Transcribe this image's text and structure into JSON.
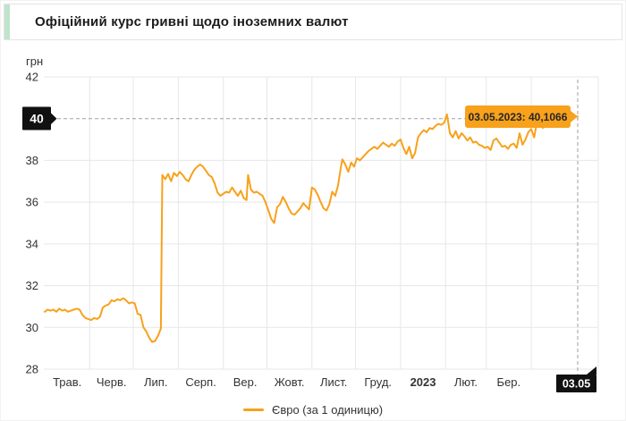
{
  "header": {
    "title": "Офіційний курс гривні щодо іноземних валют"
  },
  "axis_unit_label": "грн",
  "callouts": {
    "y_value": "40",
    "x_value": "03.05",
    "tooltip": "03.05.2023: 40,1066"
  },
  "legend": {
    "label": "Євро (за 1 одиницю)"
  },
  "colors": {
    "series_orange": "#F8A11B",
    "callout_black": "#111111",
    "callout_text": "#ffffff",
    "tooltip_text": "#262626",
    "accent_green": "#BFE3CC",
    "grid": "#E7E7E7",
    "dash": "#9F9F9F",
    "tick_text": "#333333"
  },
  "chart_data": {
    "type": "line",
    "title": "Офіційний курс гривні щодо іноземних валют",
    "xlabel": "",
    "ylabel": "грн",
    "ylim": [
      28,
      42
    ],
    "yticks": [
      42,
      40,
      38,
      36,
      34,
      32,
      30,
      28
    ],
    "highlighted_ytick": 40,
    "xtick_labels": [
      "Трав.",
      "Черв.",
      "Лип.",
      "Серп.",
      "Вер.",
      "Жовт.",
      "Лист.",
      "Груд.",
      "2023",
      "Лют.",
      "Бер."
    ],
    "highlighted_xtick_label": "03.05",
    "x_range": [
      "2022-05-01",
      "2023-05-03"
    ],
    "grid": true,
    "legend_position": "bottom",
    "annotation": {
      "date": "2023-05-03",
      "value": 40.1066,
      "label": "03.05.2023: 40,1066"
    },
    "series": [
      {
        "name": "Євро (за 1 одиницю)",
        "color": "#F8A11B",
        "points": [
          [
            "2022-05-01",
            30.75
          ],
          [
            "2022-05-03",
            30.85
          ],
          [
            "2022-05-05",
            30.8
          ],
          [
            "2022-05-07",
            30.85
          ],
          [
            "2022-05-09",
            30.75
          ],
          [
            "2022-05-11",
            30.9
          ],
          [
            "2022-05-13",
            30.8
          ],
          [
            "2022-05-15",
            30.85
          ],
          [
            "2022-05-17",
            30.75
          ],
          [
            "2022-05-19",
            30.8
          ],
          [
            "2022-05-21",
            30.85
          ],
          [
            "2022-05-23",
            30.9
          ],
          [
            "2022-05-25",
            30.85
          ],
          [
            "2022-05-27",
            30.6
          ],
          [
            "2022-05-29",
            30.45
          ],
          [
            "2022-05-31",
            30.4
          ],
          [
            "2022-06-02",
            30.35
          ],
          [
            "2022-06-04",
            30.45
          ],
          [
            "2022-06-06",
            30.4
          ],
          [
            "2022-06-08",
            30.5
          ],
          [
            "2022-06-10",
            30.95
          ],
          [
            "2022-06-12",
            31.05
          ],
          [
            "2022-06-14",
            31.1
          ],
          [
            "2022-06-16",
            31.3
          ],
          [
            "2022-06-18",
            31.25
          ],
          [
            "2022-06-20",
            31.35
          ],
          [
            "2022-06-22",
            31.3
          ],
          [
            "2022-06-24",
            31.4
          ],
          [
            "2022-06-26",
            31.3
          ],
          [
            "2022-06-28",
            31.15
          ],
          [
            "2022-06-30",
            31.2
          ],
          [
            "2022-07-02",
            31.15
          ],
          [
            "2022-07-04",
            30.65
          ],
          [
            "2022-07-06",
            30.6
          ],
          [
            "2022-07-08",
            30.0
          ],
          [
            "2022-07-10",
            29.8
          ],
          [
            "2022-07-12",
            29.5
          ],
          [
            "2022-07-14",
            29.3
          ],
          [
            "2022-07-16",
            29.35
          ],
          [
            "2022-07-18",
            29.6
          ],
          [
            "2022-07-20",
            29.95
          ],
          [
            "2022-07-21",
            37.3
          ],
          [
            "2022-07-23",
            37.1
          ],
          [
            "2022-07-25",
            37.35
          ],
          [
            "2022-07-27",
            37.0
          ],
          [
            "2022-07-29",
            37.4
          ],
          [
            "2022-07-31",
            37.25
          ],
          [
            "2022-08-02",
            37.45
          ],
          [
            "2022-08-04",
            37.3
          ],
          [
            "2022-08-06",
            37.1
          ],
          [
            "2022-08-08",
            37.0
          ],
          [
            "2022-08-10",
            37.3
          ],
          [
            "2022-08-12",
            37.55
          ],
          [
            "2022-08-14",
            37.7
          ],
          [
            "2022-08-16",
            37.8
          ],
          [
            "2022-08-18",
            37.7
          ],
          [
            "2022-08-20",
            37.5
          ],
          [
            "2022-08-22",
            37.3
          ],
          [
            "2022-08-24",
            37.2
          ],
          [
            "2022-08-26",
            36.9
          ],
          [
            "2022-08-28",
            36.45
          ],
          [
            "2022-08-30",
            36.3
          ],
          [
            "2022-09-01",
            36.4
          ],
          [
            "2022-09-03",
            36.5
          ],
          [
            "2022-09-05",
            36.45
          ],
          [
            "2022-09-07",
            36.7
          ],
          [
            "2022-09-09",
            36.5
          ],
          [
            "2022-09-11",
            36.3
          ],
          [
            "2022-09-13",
            36.55
          ],
          [
            "2022-09-15",
            36.2
          ],
          [
            "2022-09-17",
            36.1
          ],
          [
            "2022-09-18",
            37.3
          ],
          [
            "2022-09-20",
            36.6
          ],
          [
            "2022-09-22",
            36.45
          ],
          [
            "2022-09-24",
            36.5
          ],
          [
            "2022-09-26",
            36.4
          ],
          [
            "2022-09-28",
            36.3
          ],
          [
            "2022-09-30",
            36.0
          ],
          [
            "2022-10-02",
            35.6
          ],
          [
            "2022-10-04",
            35.2
          ],
          [
            "2022-10-06",
            35.0
          ],
          [
            "2022-10-08",
            35.75
          ],
          [
            "2022-10-10",
            35.9
          ],
          [
            "2022-10-12",
            36.25
          ],
          [
            "2022-10-14",
            36.0
          ],
          [
            "2022-10-16",
            35.7
          ],
          [
            "2022-10-18",
            35.45
          ],
          [
            "2022-10-20",
            35.4
          ],
          [
            "2022-10-22",
            35.55
          ],
          [
            "2022-10-24",
            35.7
          ],
          [
            "2022-10-26",
            35.95
          ],
          [
            "2022-10-28",
            35.8
          ],
          [
            "2022-10-30",
            35.65
          ],
          [
            "2022-11-01",
            36.7
          ],
          [
            "2022-11-03",
            36.6
          ],
          [
            "2022-11-05",
            36.35
          ],
          [
            "2022-11-07",
            36.0
          ],
          [
            "2022-11-09",
            35.7
          ],
          [
            "2022-11-11",
            35.6
          ],
          [
            "2022-11-13",
            35.9
          ],
          [
            "2022-11-15",
            36.5
          ],
          [
            "2022-11-17",
            36.3
          ],
          [
            "2022-11-19",
            36.8
          ],
          [
            "2022-11-21",
            37.7
          ],
          [
            "2022-11-22",
            38.05
          ],
          [
            "2022-11-24",
            37.8
          ],
          [
            "2022-11-26",
            37.45
          ],
          [
            "2022-11-28",
            37.9
          ],
          [
            "2022-11-30",
            37.7
          ],
          [
            "2022-12-02",
            38.1
          ],
          [
            "2022-12-04",
            38.0
          ],
          [
            "2022-12-06",
            38.15
          ],
          [
            "2022-12-08",
            38.3
          ],
          [
            "2022-12-10",
            38.45
          ],
          [
            "2022-12-12",
            38.55
          ],
          [
            "2022-12-14",
            38.65
          ],
          [
            "2022-12-16",
            38.55
          ],
          [
            "2022-12-18",
            38.7
          ],
          [
            "2022-12-20",
            38.85
          ],
          [
            "2022-12-22",
            38.75
          ],
          [
            "2022-12-24",
            38.65
          ],
          [
            "2022-12-26",
            38.8
          ],
          [
            "2022-12-28",
            38.7
          ],
          [
            "2022-12-30",
            38.9
          ],
          [
            "2023-01-01",
            39.0
          ],
          [
            "2023-01-03",
            38.6
          ],
          [
            "2023-01-05",
            38.3
          ],
          [
            "2023-01-07",
            38.65
          ],
          [
            "2023-01-09",
            38.1
          ],
          [
            "2023-01-11",
            38.35
          ],
          [
            "2023-01-13",
            39.1
          ],
          [
            "2023-01-15",
            39.3
          ],
          [
            "2023-01-17",
            39.45
          ],
          [
            "2023-01-19",
            39.35
          ],
          [
            "2023-01-21",
            39.55
          ],
          [
            "2023-01-23",
            39.5
          ],
          [
            "2023-01-25",
            39.65
          ],
          [
            "2023-01-27",
            39.75
          ],
          [
            "2023-01-29",
            39.7
          ],
          [
            "2023-01-31",
            39.8
          ],
          [
            "2023-02-02",
            40.2
          ],
          [
            "2023-02-04",
            39.3
          ],
          [
            "2023-02-06",
            39.1
          ],
          [
            "2023-02-08",
            39.4
          ],
          [
            "2023-02-10",
            39.05
          ],
          [
            "2023-02-12",
            39.3
          ],
          [
            "2023-02-14",
            39.15
          ],
          [
            "2023-02-16",
            38.95
          ],
          [
            "2023-02-18",
            39.1
          ],
          [
            "2023-02-20",
            38.85
          ],
          [
            "2023-02-22",
            38.9
          ],
          [
            "2023-02-24",
            38.75
          ],
          [
            "2023-02-26",
            38.7
          ],
          [
            "2023-02-28",
            38.6
          ],
          [
            "2023-03-02",
            38.65
          ],
          [
            "2023-03-04",
            38.5
          ],
          [
            "2023-03-06",
            38.95
          ],
          [
            "2023-03-08",
            39.05
          ],
          [
            "2023-03-10",
            38.85
          ],
          [
            "2023-03-12",
            38.65
          ],
          [
            "2023-03-14",
            38.7
          ],
          [
            "2023-03-16",
            38.55
          ],
          [
            "2023-03-18",
            38.75
          ],
          [
            "2023-03-20",
            38.8
          ],
          [
            "2023-03-22",
            38.6
          ],
          [
            "2023-03-24",
            39.3
          ],
          [
            "2023-03-26",
            38.75
          ],
          [
            "2023-03-28",
            39.0
          ],
          [
            "2023-03-30",
            39.35
          ],
          [
            "2023-04-01",
            39.5
          ],
          [
            "2023-04-03",
            39.1
          ],
          [
            "2023-04-05",
            39.85
          ],
          [
            "2023-04-07",
            39.9
          ],
          [
            "2023-04-09",
            39.55
          ],
          [
            "2023-04-11",
            39.7
          ],
          [
            "2023-04-13",
            39.8
          ],
          [
            "2023-04-15",
            39.7
          ],
          [
            "2023-04-17",
            39.85
          ],
          [
            "2023-04-19",
            39.95
          ],
          [
            "2023-04-21",
            39.85
          ],
          [
            "2023-04-23",
            40.0
          ],
          [
            "2023-04-25",
            39.9
          ],
          [
            "2023-04-27",
            40.05
          ],
          [
            "2023-04-29",
            40.0
          ],
          [
            "2023-05-01",
            40.08
          ],
          [
            "2023-05-03",
            40.1066
          ]
        ]
      }
    ]
  }
}
